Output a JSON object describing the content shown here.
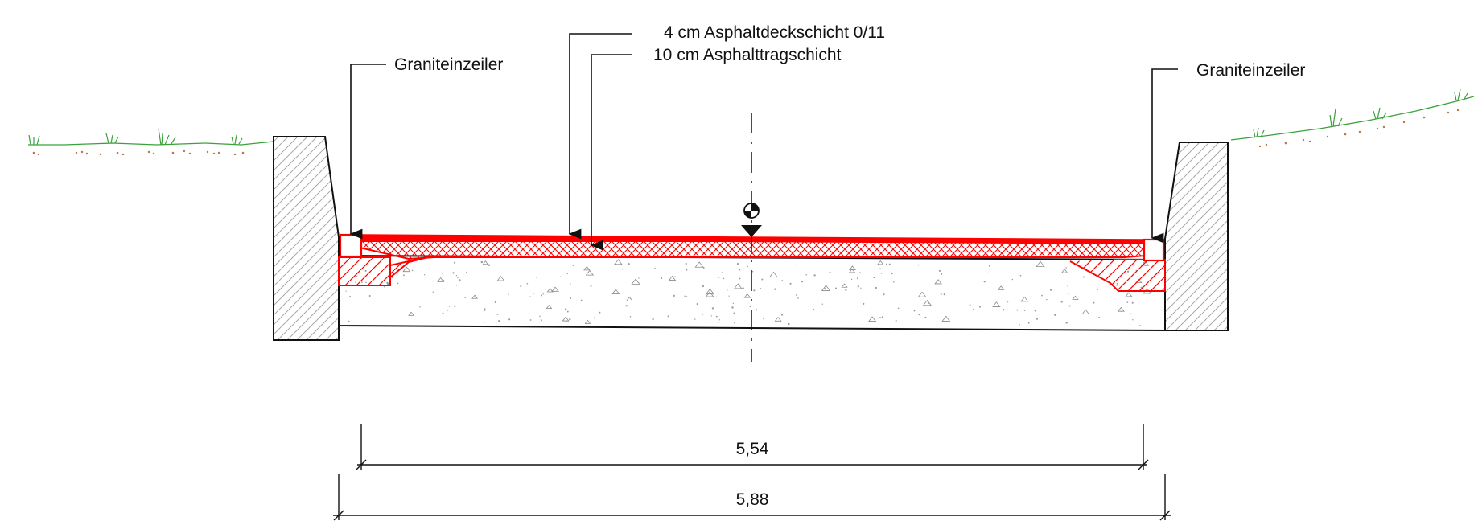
{
  "labels": {
    "curb_left": "Graniteinzeiler",
    "curb_right": "Graniteinzeiler",
    "surface_course": "4 cm Asphaltdeckschicht  0/11",
    "base_course": "10 cm Asphalttragschicht"
  },
  "dimensions": {
    "inner_width": "5,54",
    "outer_width": "5,88"
  },
  "colors": {
    "asphalt": "#ff0000",
    "line": "#111111",
    "grass": "#3aa23a",
    "soil_dots": "#b07a50",
    "wall_hatch": "#9a9a9a",
    "gravel": "#8a8a8a"
  }
}
